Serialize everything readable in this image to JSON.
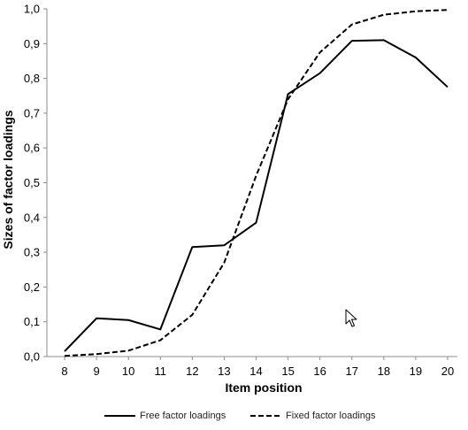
{
  "chart_data": {
    "type": "line",
    "title": "",
    "xlabel": "Item position",
    "ylabel": "Sizes of factor loadings",
    "x": [
      8,
      9,
      10,
      11,
      12,
      13,
      14,
      15,
      16,
      17,
      18,
      19,
      20
    ],
    "x_tick_labels": [
      "8",
      "9",
      "10",
      "11",
      "12",
      "13",
      "14",
      "15",
      "16",
      "17",
      "18",
      "19",
      "20"
    ],
    "ylim": [
      0,
      1
    ],
    "y_ticks": [
      0,
      0.1,
      0.2,
      0.3,
      0.4,
      0.5,
      0.6,
      0.7,
      0.8,
      0.9,
      1.0
    ],
    "y_tick_labels": [
      "0,0",
      "0,1",
      "0,2",
      "0,3",
      "0,4",
      "0,5",
      "0,6",
      "0,7",
      "0,8",
      "0,9",
      "1,0"
    ],
    "grid": false,
    "legend_position": "bottom",
    "series": [
      {
        "name": "Free factor loadings",
        "style": "solid",
        "color": "#000000",
        "values": [
          0.015,
          0.11,
          0.105,
          0.078,
          0.315,
          0.32,
          0.385,
          0.755,
          0.815,
          0.908,
          0.91,
          0.86,
          0.775
        ]
      },
      {
        "name": "Fixed factor loadings",
        "style": "dashed",
        "color": "#000000",
        "values": [
          0.002,
          0.007,
          0.017,
          0.047,
          0.12,
          0.27,
          0.52,
          0.74,
          0.875,
          0.955,
          0.983,
          0.993,
          0.997
        ]
      }
    ]
  },
  "cursor_icon": "mouse-pointer-icon"
}
